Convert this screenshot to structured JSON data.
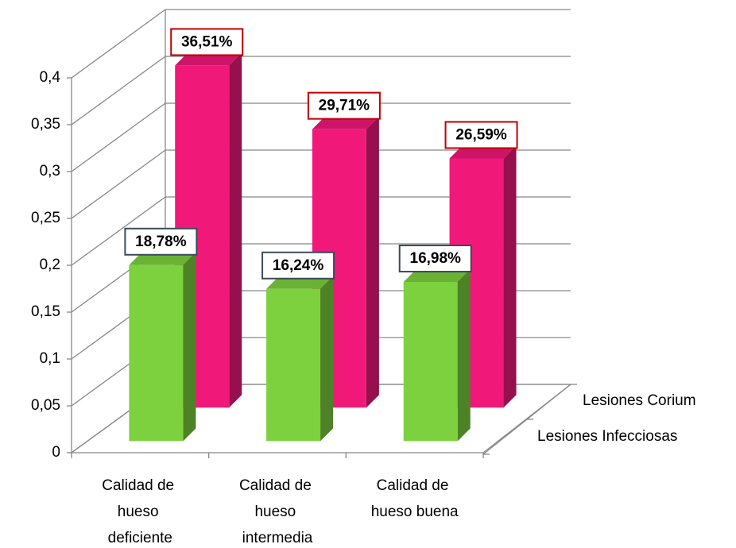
{
  "chart_data": {
    "type": "bar3d",
    "categories": [
      "Calidad de hueso deficiente",
      "Calidad de hueso intermedia",
      "Calidad de hueso buena"
    ],
    "series": [
      {
        "name": "Lesiones Infecciosas",
        "color": "#7dd13e",
        "values": [
          0.1878,
          0.1624,
          0.1698
        ],
        "value_labels": [
          "18,78%",
          "16,24%",
          "16,98%"
        ]
      },
      {
        "name": "Lesiones Corium",
        "color": "#f0197a",
        "values": [
          0.3651,
          0.2971,
          0.2659
        ],
        "value_labels": [
          "36,51%",
          "29,71%",
          "26,59%"
        ]
      }
    ],
    "ylim": [
      0,
      0.4
    ],
    "yticks": [
      0,
      {
        "value": 0.05,
        "label": "0,05"
      },
      {
        "value": 0.1,
        "label": "0,1"
      },
      {
        "value": 0.15,
        "label": "0,15"
      },
      {
        "value": 0.2,
        "label": "0,2"
      },
      {
        "value": 0.25,
        "label": "0,25"
      },
      {
        "value": 0.3,
        "label": "0,3"
      },
      {
        "value": 0.35,
        "label": "0,35"
      },
      {
        "value": 0.4,
        "label": "0,4"
      }
    ],
    "grid": true
  }
}
